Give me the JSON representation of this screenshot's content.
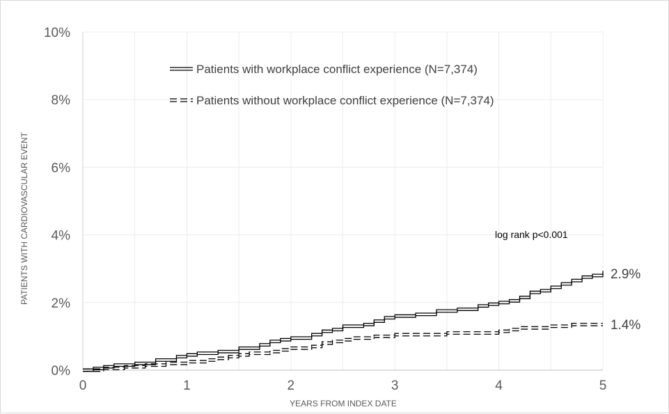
{
  "chart_data": {
    "type": "line",
    "title": "",
    "xlabel": "YEARS FROM INDEX DATE",
    "ylabel": "PATIENTS WITH CARDIOVASCULAR EVENT",
    "xlim": [
      0,
      5
    ],
    "ylim": [
      0,
      10
    ],
    "x_ticks": [
      "0",
      "1",
      "2",
      "3",
      "4",
      "5"
    ],
    "y_ticks": [
      "0%",
      "2%",
      "4%",
      "6%",
      "8%",
      "10%"
    ],
    "grid": true,
    "legend_position": "top-center",
    "annotation": "log rank p<0.001",
    "series": [
      {
        "name": "Patients with workplace conflict experience (N=7,374)",
        "style": "double-solid",
        "end_label": "2.9%",
        "points": [
          [
            0,
            0
          ],
          [
            0.1,
            0.05
          ],
          [
            0.2,
            0.1
          ],
          [
            0.3,
            0.15
          ],
          [
            0.5,
            0.2
          ],
          [
            0.7,
            0.3
          ],
          [
            0.9,
            0.4
          ],
          [
            1.0,
            0.45
          ],
          [
            1.1,
            0.5
          ],
          [
            1.3,
            0.55
          ],
          [
            1.5,
            0.65
          ],
          [
            1.7,
            0.75
          ],
          [
            1.8,
            0.85
          ],
          [
            1.9,
            0.9
          ],
          [
            2.0,
            0.95
          ],
          [
            2.2,
            1.05
          ],
          [
            2.3,
            1.15
          ],
          [
            2.4,
            1.2
          ],
          [
            2.5,
            1.3
          ],
          [
            2.7,
            1.35
          ],
          [
            2.8,
            1.45
          ],
          [
            2.9,
            1.55
          ],
          [
            3.0,
            1.6
          ],
          [
            3.2,
            1.65
          ],
          [
            3.4,
            1.75
          ],
          [
            3.6,
            1.8
          ],
          [
            3.8,
            1.9
          ],
          [
            3.9,
            1.95
          ],
          [
            4.0,
            2.0
          ],
          [
            4.1,
            2.05
          ],
          [
            4.2,
            2.15
          ],
          [
            4.3,
            2.3
          ],
          [
            4.4,
            2.35
          ],
          [
            4.5,
            2.45
          ],
          [
            4.6,
            2.55
          ],
          [
            4.7,
            2.65
          ],
          [
            4.8,
            2.75
          ],
          [
            4.9,
            2.8
          ],
          [
            5.0,
            2.9
          ]
        ]
      },
      {
        "name": "Patients without workplace conflict experience  (N=7,374)",
        "style": "double-dashed",
        "end_label": "1.4%",
        "points": [
          [
            0,
            0
          ],
          [
            0.2,
            0.05
          ],
          [
            0.4,
            0.1
          ],
          [
            0.6,
            0.15
          ],
          [
            0.8,
            0.2
          ],
          [
            1.0,
            0.25
          ],
          [
            1.2,
            0.3
          ],
          [
            1.3,
            0.35
          ],
          [
            1.4,
            0.4
          ],
          [
            1.5,
            0.45
          ],
          [
            1.6,
            0.5
          ],
          [
            1.8,
            0.55
          ],
          [
            1.9,
            0.6
          ],
          [
            2.0,
            0.65
          ],
          [
            2.2,
            0.7
          ],
          [
            2.3,
            0.8
          ],
          [
            2.4,
            0.85
          ],
          [
            2.5,
            0.9
          ],
          [
            2.6,
            0.95
          ],
          [
            2.8,
            1.0
          ],
          [
            3.0,
            1.05
          ],
          [
            3.2,
            1.05
          ],
          [
            3.5,
            1.1
          ],
          [
            3.8,
            1.1
          ],
          [
            4.0,
            1.15
          ],
          [
            4.1,
            1.2
          ],
          [
            4.2,
            1.25
          ],
          [
            4.4,
            1.25
          ],
          [
            4.5,
            1.3
          ],
          [
            4.6,
            1.3
          ],
          [
            4.7,
            1.35
          ],
          [
            5.0,
            1.35
          ]
        ]
      }
    ]
  }
}
